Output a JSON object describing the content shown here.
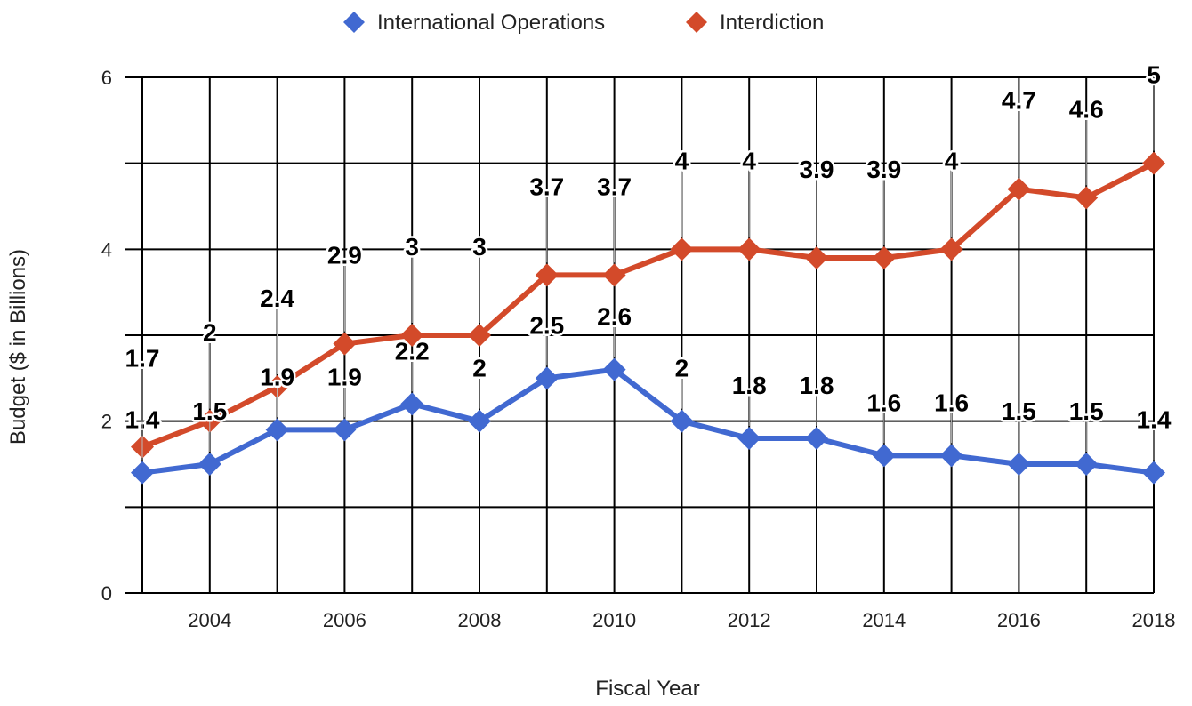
{
  "chart_data": {
    "type": "line",
    "x": [
      2003,
      2004,
      2005,
      2006,
      2007,
      2008,
      2009,
      2010,
      2011,
      2012,
      2013,
      2014,
      2015,
      2016,
      2017,
      2018
    ],
    "x_tick_labels": [
      "2004",
      "2006",
      "2008",
      "2010",
      "2012",
      "2014",
      "2016",
      "2018"
    ],
    "y_tick_labels": [
      "0",
      "2",
      "4",
      "6"
    ],
    "xlabel": "Fiscal Year",
    "ylabel": "Budget ($ in Billions)",
    "xlim": [
      2003,
      2018
    ],
    "ylim": [
      0,
      6
    ],
    "grid": true,
    "legend_position": "top",
    "series": [
      {
        "name": "International Operations",
        "color": "#4169d1",
        "marker": "diamond",
        "values": [
          1.4,
          1.5,
          1.9,
          1.9,
          2.2,
          2.0,
          2.5,
          2.6,
          2.0,
          1.8,
          1.8,
          1.6,
          1.6,
          1.5,
          1.5,
          1.4
        ],
        "labels": [
          "1.4",
          "1.5",
          "1.9",
          "1.9",
          "2.2",
          "2",
          "2.5",
          "2.6",
          "2",
          "1.8",
          "1.8",
          "1.6",
          "1.6",
          "1.5",
          "1.5",
          "1.4"
        ]
      },
      {
        "name": "Interdiction",
        "color": "#d34a2a",
        "marker": "diamond",
        "values": [
          1.7,
          2.0,
          2.4,
          2.9,
          3.0,
          3.0,
          3.7,
          3.7,
          4.0,
          4.0,
          3.9,
          3.9,
          4.0,
          4.7,
          4.6,
          5.0
        ],
        "labels": [
          "1.7",
          "2",
          "2.4",
          "2.9",
          "3",
          "3",
          "3.7",
          "3.7",
          "4",
          "4",
          "3.9",
          "3.9",
          "4",
          "4.7",
          "4.6",
          "5"
        ]
      }
    ]
  }
}
